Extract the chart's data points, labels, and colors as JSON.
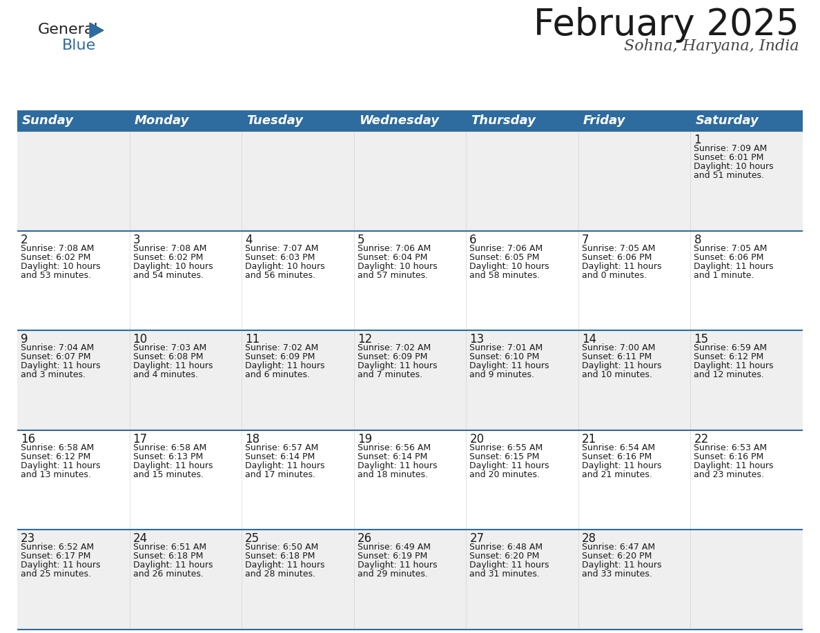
{
  "title": "February 2025",
  "subtitle": "Sohna, Haryana, India",
  "header_color": "#2E6B9E",
  "header_text_color": "#FFFFFF",
  "bg_color": "#FFFFFF",
  "cell_bg_alt": "#EFEFEF",
  "cell_bg_main": "#FFFFFF",
  "border_color": "#2E6B9E",
  "text_color": "#1a1a1a",
  "day_names": [
    "Sunday",
    "Monday",
    "Tuesday",
    "Wednesday",
    "Thursday",
    "Friday",
    "Saturday"
  ],
  "title_fontsize": 38,
  "subtitle_fontsize": 16,
  "day_header_fontsize": 13,
  "cell_date_fontsize": 12,
  "cell_text_fontsize": 9,
  "logo_general_fontsize": 16,
  "logo_blue_fontsize": 16,
  "weeks": [
    [
      {
        "day": null,
        "info": null
      },
      {
        "day": null,
        "info": null
      },
      {
        "day": null,
        "info": null
      },
      {
        "day": null,
        "info": null
      },
      {
        "day": null,
        "info": null
      },
      {
        "day": null,
        "info": null
      },
      {
        "day": 1,
        "info": "Sunrise: 7:09 AM\nSunset: 6:01 PM\nDaylight: 10 hours\nand 51 minutes."
      }
    ],
    [
      {
        "day": 2,
        "info": "Sunrise: 7:08 AM\nSunset: 6:02 PM\nDaylight: 10 hours\nand 53 minutes."
      },
      {
        "day": 3,
        "info": "Sunrise: 7:08 AM\nSunset: 6:02 PM\nDaylight: 10 hours\nand 54 minutes."
      },
      {
        "day": 4,
        "info": "Sunrise: 7:07 AM\nSunset: 6:03 PM\nDaylight: 10 hours\nand 56 minutes."
      },
      {
        "day": 5,
        "info": "Sunrise: 7:06 AM\nSunset: 6:04 PM\nDaylight: 10 hours\nand 57 minutes."
      },
      {
        "day": 6,
        "info": "Sunrise: 7:06 AM\nSunset: 6:05 PM\nDaylight: 10 hours\nand 58 minutes."
      },
      {
        "day": 7,
        "info": "Sunrise: 7:05 AM\nSunset: 6:06 PM\nDaylight: 11 hours\nand 0 minutes."
      },
      {
        "day": 8,
        "info": "Sunrise: 7:05 AM\nSunset: 6:06 PM\nDaylight: 11 hours\nand 1 minute."
      }
    ],
    [
      {
        "day": 9,
        "info": "Sunrise: 7:04 AM\nSunset: 6:07 PM\nDaylight: 11 hours\nand 3 minutes."
      },
      {
        "day": 10,
        "info": "Sunrise: 7:03 AM\nSunset: 6:08 PM\nDaylight: 11 hours\nand 4 minutes."
      },
      {
        "day": 11,
        "info": "Sunrise: 7:02 AM\nSunset: 6:09 PM\nDaylight: 11 hours\nand 6 minutes."
      },
      {
        "day": 12,
        "info": "Sunrise: 7:02 AM\nSunset: 6:09 PM\nDaylight: 11 hours\nand 7 minutes."
      },
      {
        "day": 13,
        "info": "Sunrise: 7:01 AM\nSunset: 6:10 PM\nDaylight: 11 hours\nand 9 minutes."
      },
      {
        "day": 14,
        "info": "Sunrise: 7:00 AM\nSunset: 6:11 PM\nDaylight: 11 hours\nand 10 minutes."
      },
      {
        "day": 15,
        "info": "Sunrise: 6:59 AM\nSunset: 6:12 PM\nDaylight: 11 hours\nand 12 minutes."
      }
    ],
    [
      {
        "day": 16,
        "info": "Sunrise: 6:58 AM\nSunset: 6:12 PM\nDaylight: 11 hours\nand 13 minutes."
      },
      {
        "day": 17,
        "info": "Sunrise: 6:58 AM\nSunset: 6:13 PM\nDaylight: 11 hours\nand 15 minutes."
      },
      {
        "day": 18,
        "info": "Sunrise: 6:57 AM\nSunset: 6:14 PM\nDaylight: 11 hours\nand 17 minutes."
      },
      {
        "day": 19,
        "info": "Sunrise: 6:56 AM\nSunset: 6:14 PM\nDaylight: 11 hours\nand 18 minutes."
      },
      {
        "day": 20,
        "info": "Sunrise: 6:55 AM\nSunset: 6:15 PM\nDaylight: 11 hours\nand 20 minutes."
      },
      {
        "day": 21,
        "info": "Sunrise: 6:54 AM\nSunset: 6:16 PM\nDaylight: 11 hours\nand 21 minutes."
      },
      {
        "day": 22,
        "info": "Sunrise: 6:53 AM\nSunset: 6:16 PM\nDaylight: 11 hours\nand 23 minutes."
      }
    ],
    [
      {
        "day": 23,
        "info": "Sunrise: 6:52 AM\nSunset: 6:17 PM\nDaylight: 11 hours\nand 25 minutes."
      },
      {
        "day": 24,
        "info": "Sunrise: 6:51 AM\nSunset: 6:18 PM\nDaylight: 11 hours\nand 26 minutes."
      },
      {
        "day": 25,
        "info": "Sunrise: 6:50 AM\nSunset: 6:18 PM\nDaylight: 11 hours\nand 28 minutes."
      },
      {
        "day": 26,
        "info": "Sunrise: 6:49 AM\nSunset: 6:19 PM\nDaylight: 11 hours\nand 29 minutes."
      },
      {
        "day": 27,
        "info": "Sunrise: 6:48 AM\nSunset: 6:20 PM\nDaylight: 11 hours\nand 31 minutes."
      },
      {
        "day": 28,
        "info": "Sunrise: 6:47 AM\nSunset: 6:20 PM\nDaylight: 11 hours\nand 33 minutes."
      },
      {
        "day": null,
        "info": null
      }
    ]
  ]
}
